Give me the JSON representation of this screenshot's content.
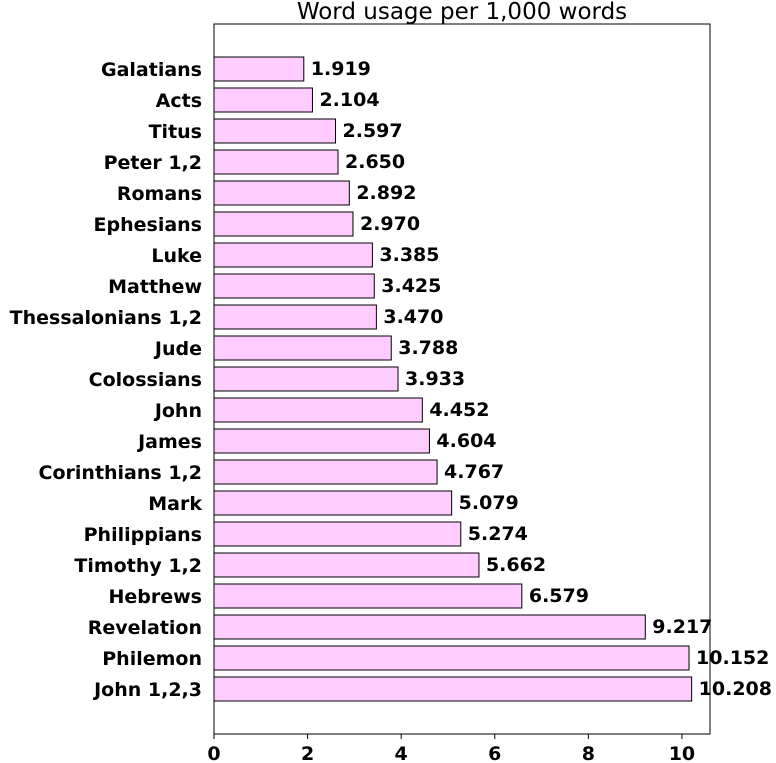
{
  "chart_data": {
    "type": "bar",
    "orientation": "horizontal",
    "title": "Word usage per 1,000 words",
    "xlabel": "",
    "ylabel": "",
    "categories": [
      "Galatians",
      "Acts",
      "Titus",
      "Peter 1,2",
      "Romans",
      "Ephesians",
      "Luke",
      "Matthew",
      "Thessalonians 1,2",
      "Jude",
      "Colossians",
      "John",
      "James",
      "Corinthians 1,2",
      "Mark",
      "Philippians",
      "Timothy 1,2",
      "Hebrews",
      "Revelation",
      "Philemon",
      "John 1,2,3"
    ],
    "values": [
      1.919,
      2.104,
      2.597,
      2.65,
      2.892,
      2.97,
      3.385,
      3.425,
      3.47,
      3.788,
      3.933,
      4.452,
      4.604,
      4.767,
      5.079,
      5.274,
      5.662,
      6.579,
      9.217,
      10.152,
      10.208
    ],
    "value_labels": [
      "1.919",
      "2.104",
      "2.597",
      "2.650",
      "2.892",
      "2.970",
      "3.385",
      "3.425",
      "3.470",
      "3.788",
      "3.933",
      "4.452",
      "4.604",
      "4.767",
      "5.079",
      "5.274",
      "5.662",
      "6.579",
      "9.217",
      "10.152",
      "10.208"
    ],
    "xlim": [
      0,
      10.6
    ],
    "xticks": [
      "0",
      "2",
      "4",
      "6",
      "8",
      "10"
    ],
    "bar_color": "#ffccff",
    "bar_edge_color": "#000000",
    "grid": false,
    "legend": "none"
  }
}
